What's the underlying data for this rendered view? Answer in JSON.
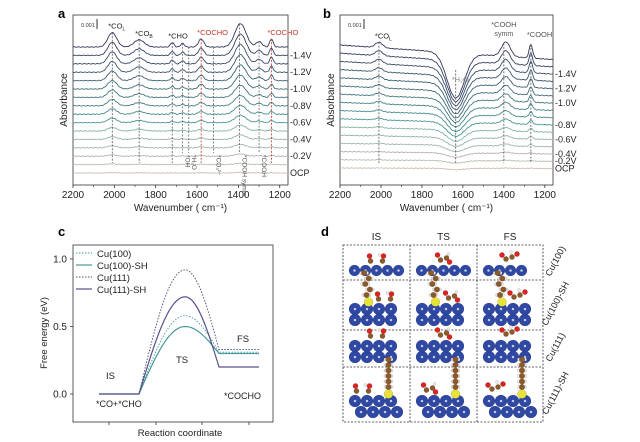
{
  "chart_data": [
    {
      "panel": "a",
      "type": "line",
      "xlabel": "Wavenumber ( cm⁻¹)",
      "ylabel": "Absorbance",
      "xlim": [
        2200,
        1180
      ],
      "xticks": [
        "2200",
        "2000",
        "1800",
        "1600",
        "1400",
        "1200"
      ],
      "scale_bar": "0.001",
      "potentials": [
        {
          "label": "-1.4V",
          "trace": 1
        },
        {
          "label": "-1.2V",
          "trace": 3
        },
        {
          "label": "-1.0V",
          "trace": 5
        },
        {
          "label": "-0.8V",
          "trace": 7
        },
        {
          "label": "-0.6V",
          "trace": 9
        },
        {
          "label": "-0.4V",
          "trace": 11
        },
        {
          "label": "-0.2V",
          "trace": 13
        },
        {
          "label": "OCP",
          "trace": 15
        }
      ],
      "trace_count": 16,
      "peaks": [
        {
          "pos": 2010,
          "amp": 1.6,
          "w": 30
        },
        {
          "pos": 1880,
          "amp": 0.8,
          "w": 35
        },
        {
          "pos": 1720,
          "amp": 0.5,
          "w": 12
        },
        {
          "pos": 1670,
          "amp": 0.4,
          "w": 12
        },
        {
          "pos": 1580,
          "amp": 0.9,
          "w": 18
        },
        {
          "pos": 1390,
          "amp": 2.6,
          "w": 38
        },
        {
          "pos": 1300,
          "amp": 0.6,
          "w": 20
        },
        {
          "pos": 1240,
          "amp": 0.9,
          "w": 12
        }
      ],
      "annotations": [
        {
          "text": "*CO",
          "sub": "L",
          "pos": 2010,
          "color": "#222222",
          "vertical": false
        },
        {
          "text": "*CO",
          "sub": "B",
          "pos": 1880,
          "color": "#222222",
          "vertical": false
        },
        {
          "text": "*CHO",
          "sub": "",
          "pos": 1720,
          "color": "#222222",
          "vertical": false
        },
        {
          "text": "*COCHO",
          "sub": "",
          "pos": 1580,
          "color": "#c0392b",
          "vertical": false
        },
        {
          "text": "*COCHO",
          "sub": "",
          "pos": 1240,
          "color": "#c0392b",
          "vertical": false
        },
        {
          "text": "*OH",
          "sub": "",
          "pos": 1670,
          "color": "#555555",
          "vertical": true
        },
        {
          "text": "*H₂O",
          "sub": "",
          "pos": 1640,
          "color": "#555555",
          "vertical": true
        },
        {
          "text": "*CO₃²⁻",
          "sub": "",
          "pos": 1520,
          "color": "#555555",
          "vertical": true
        },
        {
          "text": "*COOH symm",
          "sub": "",
          "pos": 1395,
          "color": "#555555",
          "vertical": true
        },
        {
          "text": "*COOH",
          "sub": "",
          "pos": 1300,
          "color": "#555555",
          "vertical": true
        }
      ]
    },
    {
      "panel": "b",
      "type": "line",
      "xlabel": "Wavenumber ( cm⁻¹)",
      "ylabel": "Absorbance",
      "xlim": [
        2200,
        1180
      ],
      "xticks": [
        "2200",
        "2000",
        "1800",
        "1600",
        "1400",
        "1200"
      ],
      "scale_bar": "0.001",
      "potentials": [
        {
          "label": "-1.4V",
          "trace": 2
        },
        {
          "label": "-1.2V",
          "trace": 4
        },
        {
          "label": "-1.0V",
          "trace": 6
        },
        {
          "label": "-0.8V",
          "trace": 9
        },
        {
          "label": "-0.6V",
          "trace": 11
        },
        {
          "label": "-0.4V",
          "trace": 13
        },
        {
          "label": "-0.2V",
          "trace": 14
        },
        {
          "label": "OCP",
          "trace": 15
        }
      ],
      "trace_count": 16,
      "peaks": [
        {
          "pos": 2010,
          "amp": 0.6,
          "w": 25
        },
        {
          "pos": 1635,
          "amp": -5.0,
          "w": 60
        },
        {
          "pos": 1390,
          "amp": 1.6,
          "w": 30
        },
        {
          "pos": 1268,
          "amp": 1.5,
          "w": 12
        }
      ],
      "annotations": [
        {
          "text": "*CO",
          "sub": "L",
          "pos": 2010,
          "color": "#222222",
          "vertical": false
        },
        {
          "text": "*H₂O",
          "sub": "",
          "pos": 1635,
          "color": "#888888",
          "vertical": false
        },
        {
          "text": "*COOH",
          "sub": "",
          "pos": 1400,
          "color": "#555555",
          "vertical": false,
          "line2": "symm"
        },
        {
          "text": "*COOH",
          "sub": "",
          "pos": 1268,
          "color": "#555555",
          "vertical": false
        }
      ]
    },
    {
      "panel": "c",
      "type": "line",
      "title": "",
      "xlabel": "Reaction coordinate",
      "ylabel": "Free energy (eV)",
      "ylim": [
        -0.2,
        1.08
      ],
      "yticks": [
        "0.0",
        "0.5",
        "1.0"
      ],
      "states": {
        "is": "IS",
        "ts": "TS",
        "fs": "FS",
        "is_species": "*CO+*CHO",
        "fs_species": "*COCHO"
      },
      "legend_position": "top-left",
      "series": [
        {
          "name": "Cu(100)",
          "IS": 0.0,
          "TS": 0.58,
          "FS": 0.31,
          "color": "#4a9a9a",
          "dash": true
        },
        {
          "name": "Cu(100)-SH",
          "IS": 0.0,
          "TS": 0.5,
          "FS": 0.3,
          "color": "#4a9a9a",
          "dash": false
        },
        {
          "name": "Cu(111)",
          "IS": 0.0,
          "TS": 0.92,
          "FS": 0.33,
          "color": "#4a4a6a",
          "dash": true
        },
        {
          "name": "Cu(111)-SH",
          "IS": 0.0,
          "TS": 0.72,
          "FS": 0.2,
          "color": "#55508a",
          "dash": false
        }
      ]
    }
  ],
  "panels": {
    "a": "a",
    "b": "b",
    "c": "c",
    "d": "d"
  },
  "structures": {
    "columns": [
      "IS",
      "TS",
      "FS"
    ],
    "rows": [
      "Cu(100)",
      "Cu(100)-SH",
      "Cu(111)",
      "Cu(111)-SH"
    ]
  }
}
